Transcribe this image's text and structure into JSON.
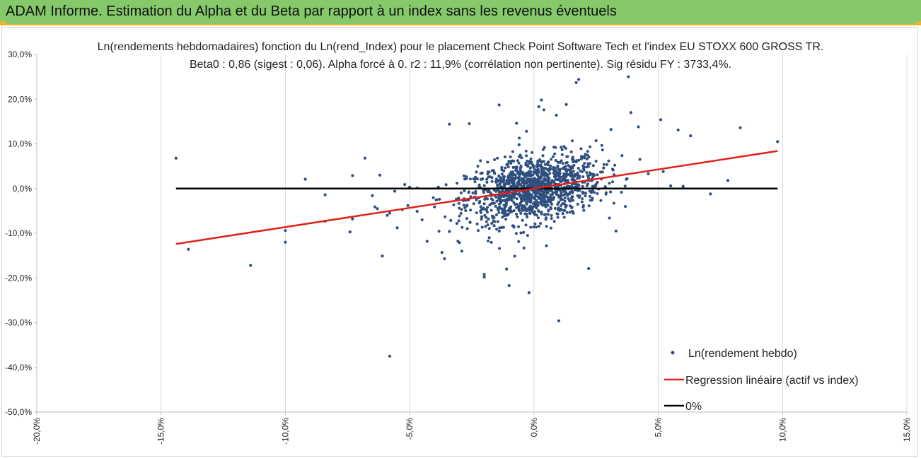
{
  "header": {
    "title": "ADAM Informe. Estimation du Alpha et du Beta par rapport à un index sans les revenus éventuels"
  },
  "colors": {
    "banner": "#86c96a",
    "banner_accent": "#e8b630",
    "points": "#2f4f7f",
    "regression": "#e0201a",
    "zero_line": "#000000",
    "grid": "#d9d9d9"
  },
  "chart_data": {
    "type": "scatter",
    "title_line1": "Ln(rendements hebdomadaires) fonction du Ln(rend_Index) pour le placement Check Point Software Tech et l'index EU STOXX 600 GROSS TR.",
    "title_line2": "Beta0 : 0,86 (sigest : 0,06). Alpha forcé à 0. r2 : 11,9% (corrélation non pertinente). Sig résidu FY : 3733,4%.",
    "xlim": [
      -20,
      15
    ],
    "ylim": [
      -50,
      30
    ],
    "x_ticks": [
      -20,
      -15,
      -10,
      -5,
      0,
      5,
      10,
      15
    ],
    "y_ticks": [
      30,
      20,
      10,
      0,
      -10,
      -20,
      -30,
      -40,
      -50
    ],
    "x_tick_labels": [
      "-20,0%",
      "-15,0%",
      "-10,0%",
      "-5,0%",
      "0,0%",
      "5,0%",
      "10,0%",
      "15,0%"
    ],
    "y_tick_labels": [
      "30,0%",
      "20,0%",
      "10,0%",
      "0,0%",
      "-10,0%",
      "-20,0%",
      "-30,0%",
      "-40,0%",
      "-50,0%"
    ],
    "grid": "vertical",
    "legend_position": "bottom-right",
    "series": [
      {
        "name": "Ln(rendement hebdo)",
        "kind": "scatter",
        "points": [
          [
            -14.4,
            6.8
          ],
          [
            -13.9,
            -13.6
          ],
          [
            -11.4,
            -17.2
          ],
          [
            -10.0,
            -12.0
          ],
          [
            -10.0,
            -9.4
          ],
          [
            -9.2,
            2.1
          ],
          [
            -8.4,
            -1.4
          ],
          [
            -8.4,
            -7.3
          ],
          [
            -7.4,
            -9.7
          ],
          [
            -7.3,
            -6.8
          ],
          [
            -7.3,
            2.9
          ],
          [
            -6.8,
            6.8
          ],
          [
            -6.5,
            -1.6
          ],
          [
            -6.4,
            -4.1
          ],
          [
            -6.3,
            -4.5
          ],
          [
            -6.2,
            3.0
          ],
          [
            -6.1,
            -15.1
          ],
          [
            -5.9,
            -6.0
          ],
          [
            -5.8,
            -5.5
          ],
          [
            -5.8,
            -37.5
          ],
          [
            -5.6,
            -0.6
          ],
          [
            -5.5,
            -8.8
          ],
          [
            -5.3,
            -4.7
          ],
          [
            -5.2,
            0.9
          ],
          [
            -5.0,
            0.3
          ],
          [
            -4.7,
            -5.1
          ],
          [
            -4.5,
            -7.0
          ],
          [
            -4.3,
            -11.8
          ],
          [
            -4.0,
            -4.1
          ],
          [
            -3.8,
            -2.4
          ],
          [
            -3.7,
            -14.3
          ],
          [
            -3.6,
            -15.7
          ],
          [
            -3.4,
            -9.6
          ],
          [
            -3.4,
            14.4
          ],
          [
            -3.1,
            -7.8
          ],
          [
            -3.0,
            -12.1
          ],
          [
            -2.9,
            -14.0
          ],
          [
            -2.8,
            -0.5
          ],
          [
            -2.7,
            -3.9
          ],
          [
            -2.6,
            14.5
          ],
          [
            -2.2,
            0.8
          ],
          [
            -2.1,
            -6.3
          ],
          [
            -2.0,
            -19.2
          ],
          [
            -2.0,
            -19.8
          ],
          [
            -1.8,
            -11.0
          ],
          [
            -1.6,
            -8.3
          ],
          [
            -1.4,
            18.7
          ],
          [
            -1.1,
            -18.0
          ],
          [
            -1.0,
            -21.7
          ],
          [
            -0.9,
            3.2
          ],
          [
            -0.7,
            14.6
          ],
          [
            -0.6,
            9.8
          ],
          [
            -0.4,
            -13.3
          ],
          [
            -0.3,
            12.8
          ],
          [
            -0.2,
            -23.3
          ],
          [
            -0.1,
            0.9
          ],
          [
            0.1,
            4.1
          ],
          [
            0.2,
            18.3
          ],
          [
            0.3,
            19.8
          ],
          [
            0.4,
            17.6
          ],
          [
            0.5,
            -12.8
          ],
          [
            0.9,
            16.4
          ],
          [
            1.0,
            -29.6
          ],
          [
            1.1,
            6.2
          ],
          [
            1.3,
            18.8
          ],
          [
            1.7,
            23.7
          ],
          [
            1.8,
            24.4
          ],
          [
            2.2,
            -17.9
          ],
          [
            2.5,
            10.7
          ],
          [
            2.8,
            4.6
          ],
          [
            3.1,
            13.2
          ],
          [
            3.3,
            -9.5
          ],
          [
            3.8,
            25.0
          ],
          [
            3.9,
            17.0
          ],
          [
            4.2,
            13.8
          ],
          [
            4.6,
            3.3
          ],
          [
            5.1,
            15.4
          ],
          [
            5.2,
            3.8
          ],
          [
            5.5,
            0.6
          ],
          [
            5.8,
            13.1
          ],
          [
            6.0,
            0.5
          ],
          [
            6.3,
            11.8
          ],
          [
            7.1,
            -1.2
          ],
          [
            7.8,
            1.8
          ],
          [
            8.3,
            13.6
          ],
          [
            9.8,
            10.5
          ]
        ]
      },
      {
        "name": "Regression linéaire (actif vs index)",
        "kind": "line",
        "x": [
          -14.4,
          9.8
        ],
        "y": [
          -12.4,
          8.4
        ]
      },
      {
        "name": "0%",
        "kind": "line",
        "x": [
          -14.4,
          9.8
        ],
        "y": [
          0,
          0
        ]
      }
    ],
    "cluster_note_rendered": false
  }
}
